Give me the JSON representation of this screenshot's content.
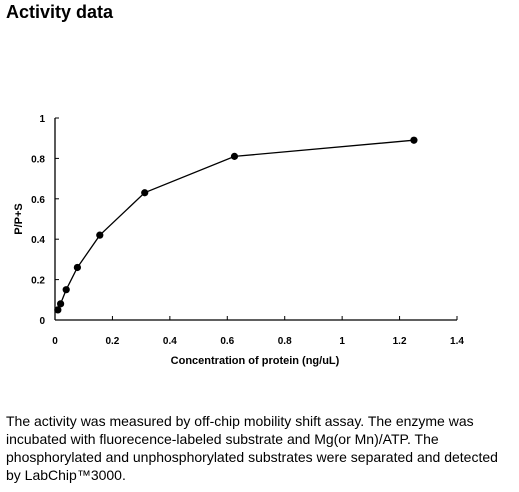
{
  "heading": "Activity data",
  "caption": "The activity was measured by off-chip mobility shift assay. The enzyme was incubated with fluorecence-labeled  substrate and Mg(or Mn)/ATP. The phosphorylated and unphosphorylated substrates were separated and detected by LabChip™3000.",
  "chart_data": {
    "type": "line",
    "title": "",
    "xlabel": "Concentration of protein (ng/uL)",
    "ylabel": "P/P+S",
    "xlim": [
      0,
      1.4
    ],
    "ylim": [
      0,
      1
    ],
    "x_ticks": [
      0,
      0.2,
      0.4,
      0.6,
      0.8,
      1,
      1.2,
      1.4
    ],
    "x_tick_labels": [
      "0",
      "0.2",
      "0.4",
      "0.6",
      "0.8",
      "1",
      "1.2",
      "1.4"
    ],
    "y_ticks": [
      0,
      0.2,
      0.4,
      0.6,
      0.8,
      1
    ],
    "y_tick_labels": [
      "0",
      "0.2",
      "0.4",
      "0.6",
      "0.8",
      "1"
    ],
    "grid": false,
    "legend": "none",
    "series": [
      {
        "x": [
          0.01,
          0.0195,
          0.039,
          0.078,
          0.156,
          0.3125,
          0.625,
          1.25
        ],
        "y": [
          0.05,
          0.08,
          0.15,
          0.26,
          0.42,
          0.63,
          0.81,
          0.89
        ]
      }
    ],
    "colors": {
      "line": "#000000",
      "marker": "#000000"
    }
  }
}
